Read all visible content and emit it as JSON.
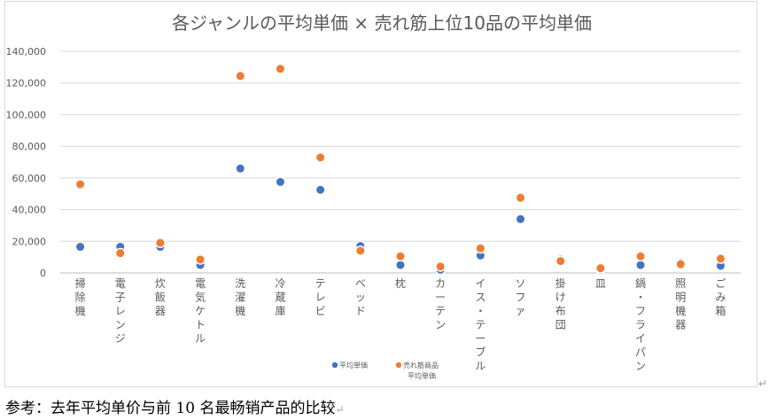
{
  "chart_data": {
    "type": "scatter",
    "title": "各ジャンルの平均単価 × 売れ筋上位10品の平均単価",
    "xlabel": "",
    "ylabel": "",
    "ylim": [
      0,
      140000
    ],
    "yticks": [
      "0",
      "20,000",
      "40,000",
      "60,000",
      "80,000",
      "100,000",
      "120,000",
      "140,000"
    ],
    "ytick_values": [
      0,
      20000,
      40000,
      60000,
      80000,
      100000,
      120000,
      140000
    ],
    "grid": true,
    "legend_position": "bottom",
    "categories": [
      "掃除機",
      "電子レンジ",
      "炊飯器",
      "電気ケトル",
      "洗濯機",
      "冷蔵庫",
      "テレビ",
      "ベッド",
      "枕",
      "カーテン",
      "イス・テーブル",
      "ソファ",
      "掛け布団",
      "皿",
      "鍋・フライパン",
      "照明機器",
      "ごみ箱"
    ],
    "series": [
      {
        "name": "平均単価",
        "color": "#4472c4",
        "values": [
          16500,
          16500,
          16500,
          5000,
          66000,
          57500,
          52500,
          17000,
          5000,
          2000,
          11000,
          34000,
          8500,
          2000,
          5000,
          6500,
          4500
        ]
      },
      {
        "name": "売れ筋商品平均単価",
        "name_lines": [
          "売れ筋商品",
          "平均単価"
        ],
        "color": "#ed7d31",
        "values": [
          56000,
          12500,
          19000,
          8500,
          124500,
          129000,
          73000,
          14000,
          10500,
          4000,
          15500,
          47500,
          7500,
          3000,
          10500,
          5500,
          9000
        ]
      }
    ]
  },
  "caption": "参考：去年平均单价与前 10 名最畅销产品的比较",
  "return_mark": "↵"
}
